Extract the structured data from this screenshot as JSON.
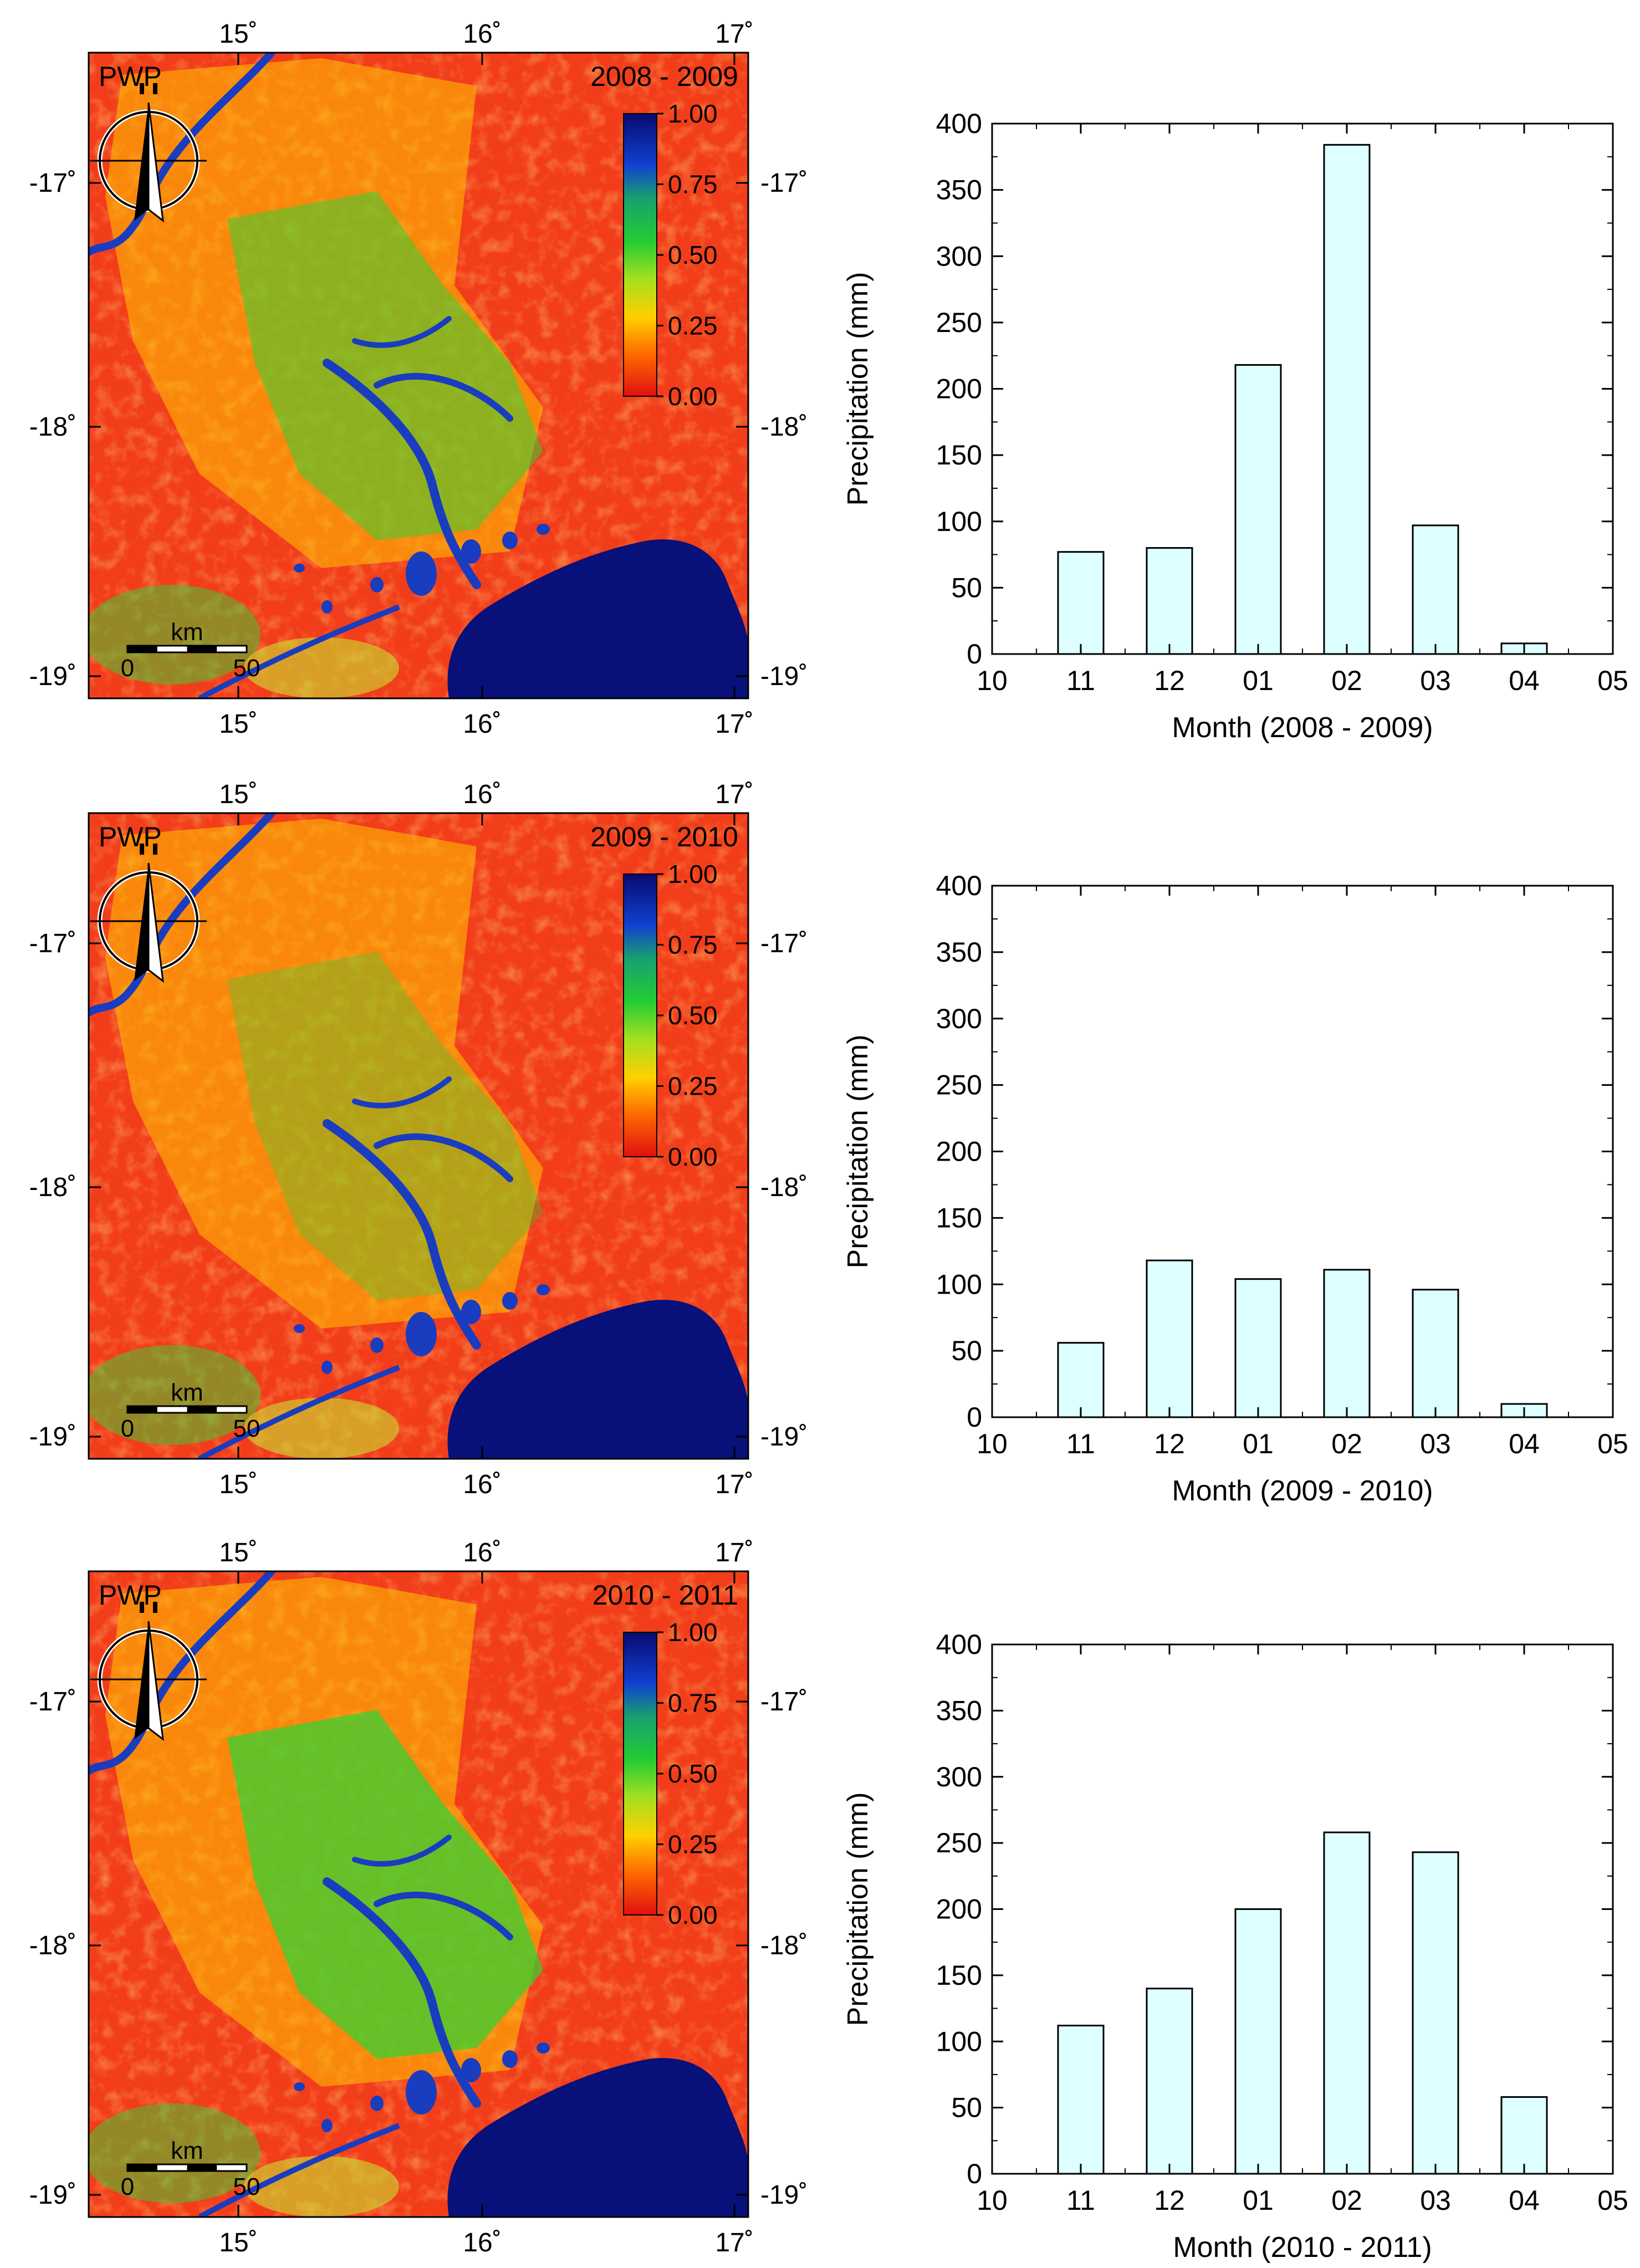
{
  "colors": {
    "bar_fill": "#ddffff",
    "bar_stroke": "#000000",
    "map_dry": "#f23d1a",
    "map_mid": "#ffc400",
    "map_green": "#35d233",
    "map_blue": "#1a3cbf",
    "map_deep": "#08107a"
  },
  "maps": [
    {
      "label": "PWP",
      "period": "2008 - 2009",
      "lon_ticks": [
        "15˚",
        "16˚",
        "17˚"
      ],
      "lat_ticks": [
        "-17˚",
        "-18˚",
        "-19˚"
      ],
      "colorbar_ticks": [
        "1.00",
        "0.75",
        "0.50",
        "0.25",
        "0.00"
      ],
      "scalebar": {
        "unit": "km",
        "start": "0",
        "end": "50"
      }
    },
    {
      "label": "PWP",
      "period": "2009 - 2010",
      "lon_ticks": [
        "15˚",
        "16˚",
        "17˚"
      ],
      "lat_ticks": [
        "-17˚",
        "-18˚",
        "-19˚"
      ],
      "colorbar_ticks": [
        "1.00",
        "0.75",
        "0.50",
        "0.25",
        "0.00"
      ],
      "scalebar": {
        "unit": "km",
        "start": "0",
        "end": "50"
      }
    },
    {
      "label": "PWP",
      "period": "2010 - 2011",
      "lon_ticks": [
        "15˚",
        "16˚",
        "17˚"
      ],
      "lat_ticks": [
        "-17˚",
        "-18˚",
        "-19˚"
      ],
      "colorbar_ticks": [
        "1.00",
        "0.75",
        "0.50",
        "0.25",
        "0.00"
      ],
      "scalebar": {
        "unit": "km",
        "start": "0",
        "end": "50"
      }
    }
  ],
  "chart_data": [
    {
      "type": "bar",
      "title": "",
      "categories": [
        "10",
        "11",
        "12",
        "01",
        "02",
        "03",
        "04",
        "05"
      ],
      "values": [
        0,
        77,
        80,
        218,
        384,
        97,
        8,
        0
      ],
      "xlabel": "Month (2008 - 2009)",
      "ylabel": "Precipitation (mm)",
      "yticks": [
        0,
        50,
        100,
        150,
        200,
        250,
        300,
        350,
        400
      ],
      "ylim": [
        0,
        400
      ],
      "grid": false
    },
    {
      "type": "bar",
      "title": "",
      "categories": [
        "10",
        "11",
        "12",
        "01",
        "02",
        "03",
        "04",
        "05"
      ],
      "values": [
        0,
        56,
        118,
        104,
        111,
        96,
        10,
        0
      ],
      "xlabel": "Month (2009 - 2010)",
      "ylabel": "Precipitation (mm)",
      "yticks": [
        0,
        50,
        100,
        150,
        200,
        250,
        300,
        350,
        400
      ],
      "ylim": [
        0,
        400
      ],
      "grid": false
    },
    {
      "type": "bar",
      "title": "",
      "categories": [
        "10",
        "11",
        "12",
        "01",
        "02",
        "03",
        "04",
        "05"
      ],
      "values": [
        0,
        112,
        140,
        200,
        258,
        243,
        58,
        0
      ],
      "xlabel": "Month (2010 - 2011)",
      "ylabel": "Precipitation (mm)",
      "yticks": [
        0,
        50,
        100,
        150,
        200,
        250,
        300,
        350,
        400
      ],
      "ylim": [
        0,
        400
      ],
      "grid": false
    }
  ]
}
